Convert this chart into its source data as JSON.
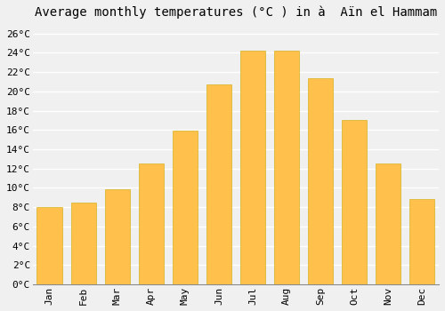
{
  "title": "Average monthly temperatures (°C ) in à  Aïn el Hammam",
  "months": [
    "Jan",
    "Feb",
    "Mar",
    "Apr",
    "May",
    "Jun",
    "Jul",
    "Aug",
    "Sep",
    "Oct",
    "Nov",
    "Dec"
  ],
  "values": [
    8.0,
    8.5,
    9.9,
    12.5,
    15.9,
    20.7,
    24.2,
    24.2,
    21.4,
    17.0,
    12.5,
    8.8
  ],
  "bar_color_top": "#FFC04C",
  "bar_color_bot": "#F5A000",
  "bar_edge_color": "#CCAA00",
  "ylim": [
    0,
    27
  ],
  "yticks": [
    0,
    2,
    4,
    6,
    8,
    10,
    12,
    14,
    16,
    18,
    20,
    22,
    24,
    26
  ],
  "ytick_labels": [
    "0°C",
    "2°C",
    "4°C",
    "6°C",
    "8°C",
    "10°C",
    "12°C",
    "14°C",
    "16°C",
    "18°C",
    "20°C",
    "22°C",
    "24°C",
    "26°C"
  ],
  "background_color": "#f0f0f0",
  "grid_color": "#ffffff",
  "title_fontsize": 10,
  "tick_fontsize": 8,
  "font_family": "monospace",
  "bar_width": 0.75
}
